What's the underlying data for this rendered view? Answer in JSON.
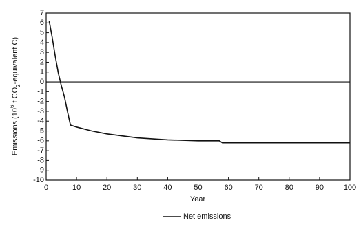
{
  "chart_data": {
    "type": "line",
    "x_label": "Year",
    "y_label_parts": [
      "Emissions (10",
      "6",
      " t CO",
      "2",
      "-equivalent C)"
    ],
    "x": [
      1,
      2,
      3,
      4,
      5,
      6,
      7,
      8,
      10,
      15,
      20,
      25,
      30,
      40,
      50,
      57,
      58,
      70,
      80,
      90,
      100
    ],
    "series": [
      {
        "name": "Net emissions",
        "color": "#111111",
        "values": [
          6.2,
          4.5,
          2.6,
          0.9,
          -0.4,
          -1.5,
          -3.0,
          -4.4,
          -4.6,
          -5.0,
          -5.3,
          -5.5,
          -5.7,
          -5.9,
          -6.0,
          -6.0,
          -6.2,
          -6.2,
          -6.2,
          -6.2,
          -6.2
        ]
      }
    ],
    "xlim": [
      0,
      100
    ],
    "xticks": [
      0,
      10,
      20,
      30,
      40,
      50,
      60,
      70,
      80,
      90,
      100
    ],
    "ylim": [
      -10,
      7
    ],
    "yticks": [
      7,
      6,
      5,
      4,
      3,
      2,
      1,
      0,
      -1,
      -2,
      -3,
      -4,
      -5,
      -6,
      -7,
      -8,
      -9,
      -10
    ],
    "reference_line": 0,
    "legend": "bottom"
  }
}
